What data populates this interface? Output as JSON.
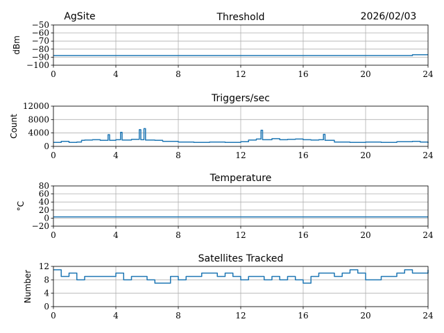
{
  "header": {
    "site": "AgSite",
    "date": "2026/02/03"
  },
  "colors": {
    "series": "#1f77b4",
    "grid": "#b0b0b0"
  },
  "chart_data": [
    {
      "type": "line",
      "title": "Threshold",
      "ylabel": "dBm",
      "xlim": [
        0,
        24
      ],
      "ylim": [
        -100,
        -50
      ],
      "xticks": [
        "0",
        "4",
        "8",
        "12",
        "16",
        "20",
        "24"
      ],
      "yticks": [
        "−50",
        "−60",
        "−70",
        "−80",
        "−90",
        "−100"
      ],
      "ytick_values": [
        -50,
        -60,
        -70,
        -80,
        -90,
        -100
      ],
      "grid": true,
      "x": [
        0,
        2,
        4,
        6,
        8,
        10,
        12,
        14,
        16,
        18,
        20,
        22,
        23,
        24
      ],
      "values": [
        -88,
        -88,
        -88,
        -88,
        -88,
        -88,
        -88,
        -88,
        -88,
        -88,
        -88,
        -88,
        -87,
        -87
      ]
    },
    {
      "type": "line",
      "title": "Triggers/sec",
      "ylabel": "Count",
      "xlim": [
        0,
        24
      ],
      "ylim": [
        0,
        12000
      ],
      "xticks": [
        "0",
        "4",
        "8",
        "12",
        "16",
        "20",
        "24"
      ],
      "yticks": [
        "12000",
        "8000",
        "4000",
        "0"
      ],
      "ytick_values": [
        12000,
        8000,
        4000,
        0
      ],
      "grid": true,
      "x": [
        0,
        0.5,
        1,
        1.5,
        1.8,
        2,
        2.5,
        3,
        3.5,
        3.6,
        4,
        4.3,
        4.4,
        5,
        5.5,
        5.6,
        5.8,
        5.9,
        6.5,
        7,
        8,
        9,
        10,
        11,
        12,
        12.5,
        13,
        13.3,
        13.4,
        14,
        14.5,
        15,
        15.5,
        16,
        16.5,
        17,
        17.3,
        17.4,
        18,
        19,
        20,
        21,
        22,
        23,
        23.5,
        24
      ],
      "values": [
        1200,
        1500,
        1200,
        1300,
        1800,
        1900,
        2000,
        1800,
        3500,
        1800,
        2000,
        4200,
        1900,
        2100,
        5000,
        2000,
        5300,
        1900,
        1800,
        1500,
        1300,
        1200,
        1300,
        1200,
        1400,
        1900,
        2200,
        4800,
        2000,
        2300,
        2000,
        2100,
        2200,
        2000,
        1900,
        2000,
        3600,
        1800,
        1300,
        1200,
        1300,
        1200,
        1400,
        1500,
        1300,
        1000
      ]
    },
    {
      "type": "line",
      "title": "Temperature",
      "ylabel": "°C",
      "xlim": [
        0,
        24
      ],
      "ylim": [
        -20,
        80
      ],
      "xticks": [
        "0",
        "4",
        "8",
        "12",
        "16",
        "20",
        "24"
      ],
      "yticks": [
        "80",
        "60",
        "40",
        "20",
        "0",
        "−20"
      ],
      "ytick_values": [
        80,
        60,
        40,
        20,
        0,
        -20
      ],
      "grid": true,
      "x": [
        0,
        24
      ],
      "values": [
        3,
        3
      ]
    },
    {
      "type": "line",
      "title": "Satellites Tracked",
      "ylabel": "Number",
      "xlim": [
        0,
        24
      ],
      "ylim": [
        0,
        12
      ],
      "xticks": [
        "0",
        "4",
        "8",
        "12",
        "16",
        "20",
        "24"
      ],
      "yticks": [
        "12",
        "8",
        "4",
        "0"
      ],
      "ytick_values": [
        12,
        8,
        4,
        0
      ],
      "grid": true,
      "x": [
        0,
        0.5,
        1,
        1.5,
        2,
        2.5,
        3,
        3.5,
        4,
        4.5,
        5,
        5.5,
        6,
        6.5,
        7,
        7.5,
        8,
        8.5,
        9,
        9.5,
        10,
        10.5,
        11,
        11.5,
        12,
        12.5,
        13,
        13.5,
        14,
        14.5,
        15,
        15.5,
        16,
        16.5,
        17,
        17.5,
        18,
        18.5,
        19,
        19.5,
        20,
        20.5,
        21,
        21.5,
        22,
        22.5,
        23,
        23.5,
        24
      ],
      "values": [
        11,
        9,
        10,
        8,
        9,
        9,
        9,
        9,
        10,
        8,
        9,
        9,
        8,
        7,
        7,
        9,
        8,
        9,
        9,
        10,
        10,
        9,
        10,
        9,
        8,
        9,
        9,
        8,
        9,
        8,
        9,
        8,
        7,
        9,
        10,
        10,
        9,
        10,
        11,
        10,
        8,
        8,
        9,
        9,
        10,
        11,
        10,
        10,
        11
      ]
    }
  ]
}
